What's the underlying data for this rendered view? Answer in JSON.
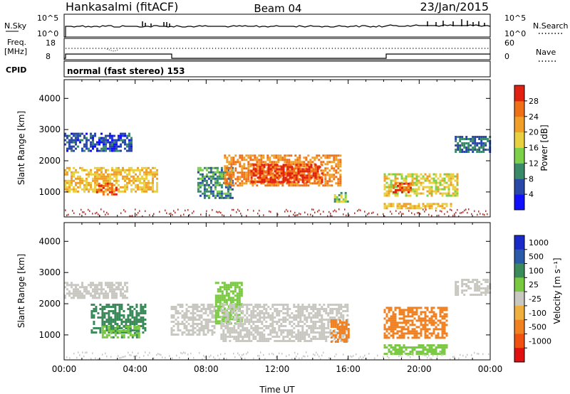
{
  "header": {
    "station": "Hankasalmi (fitACF)",
    "beam": "Beam 04",
    "date": "23/Jan/2015"
  },
  "strip": {
    "nsky_label": "N.Sky",
    "nsearch_label": "N.Search",
    "nsky_ticks": [
      "10^5",
      "10^0"
    ],
    "nsearch_ticks": [
      "10^5",
      "10^0"
    ],
    "freq_label_line1": "Freq.",
    "freq_label_line2": "[MHz]",
    "freq_ticks": [
      "18",
      "8"
    ],
    "nave_label": "Nave",
    "nave_ticks": [
      "60",
      "0"
    ],
    "cpid_label": "CPID",
    "mode_text": "normal (fast stereo) 153"
  },
  "colors": {
    "power": [
      "#1010ff",
      "#2a48a8",
      "#3a8a6a",
      "#7cd04a",
      "#e8d040",
      "#f0a028",
      "#f07018",
      "#e02010"
    ],
    "velocity": [
      "#e01010",
      "#f05010",
      "#f08020",
      "#f0b040",
      "#c8c8c0",
      "#78c840",
      "#3a8a5a",
      "#2a5aa8",
      "#1a2ac8"
    ]
  },
  "chart_data": [
    {
      "type": "heatmap",
      "panel": "power",
      "xlabel": "",
      "ylabel": "Slant Range [km]",
      "y_ticks": [
        1000,
        2000,
        3000,
        4000
      ],
      "ylim": [
        200,
        4600
      ],
      "xlim_hours": [
        0,
        24
      ],
      "colorbar": {
        "label": "Power [dB]",
        "ticks": [
          4,
          8,
          12,
          16,
          20,
          24,
          28
        ],
        "range": [
          0,
          32
        ]
      },
      "regions": [
        {
          "t": [
            0.0,
            3.8
          ],
          "r": [
            2300,
            2900
          ],
          "v": 6
        },
        {
          "t": [
            0.0,
            5.2
          ],
          "r": [
            1000,
            1800
          ],
          "v": 20
        },
        {
          "t": [
            1.8,
            3.0
          ],
          "r": [
            900,
            1300
          ],
          "v": 28
        },
        {
          "t": [
            7.5,
            9.5
          ],
          "r": [
            800,
            1800
          ],
          "v": 10
        },
        {
          "t": [
            9.0,
            15.6
          ],
          "r": [
            1200,
            2200
          ],
          "v": 24
        },
        {
          "t": [
            10.5,
            14.5
          ],
          "r": [
            1300,
            1900
          ],
          "v": 30
        },
        {
          "t": [
            15.2,
            16.0
          ],
          "r": [
            700,
            1000
          ],
          "v": 14
        },
        {
          "t": [
            18.0,
            22.2
          ],
          "r": [
            900,
            1600
          ],
          "v": 18
        },
        {
          "t": [
            18.5,
            19.5
          ],
          "r": [
            1000,
            1300
          ],
          "v": 28
        },
        {
          "t": [
            18.0,
            21.8
          ],
          "r": [
            450,
            650
          ],
          "v": 20
        },
        {
          "t": [
            22.0,
            24.0
          ],
          "r": [
            2300,
            2800
          ],
          "v": 8
        }
      ]
    },
    {
      "type": "heatmap",
      "panel": "velocity",
      "xlabel": "Time UT",
      "ylabel": "Slant Range [km]",
      "x_ticks": [
        "00:00",
        "04:00",
        "08:00",
        "12:00",
        "16:00",
        "20:00",
        "00:00"
      ],
      "y_ticks": [
        1000,
        2000,
        3000,
        4000
      ],
      "ylim": [
        200,
        4600
      ],
      "xlim_hours": [
        0,
        24
      ],
      "colorbar": {
        "label": "Velocity [m s⁻¹]",
        "ticks": [
          1000,
          500,
          100,
          25,
          -25,
          -100,
          -500,
          -1000
        ]
      },
      "regions": [
        {
          "t": [
            0.0,
            3.5
          ],
          "r": [
            2200,
            2700
          ],
          "v": 0
        },
        {
          "t": [
            1.5,
            4.6
          ],
          "r": [
            1100,
            2000
          ],
          "v": 200
        },
        {
          "t": [
            2.0,
            4.2
          ],
          "r": [
            900,
            1300
          ],
          "v": 90
        },
        {
          "t": [
            6.0,
            8.5
          ],
          "r": [
            1000,
            2000
          ],
          "v": 0
        },
        {
          "t": [
            8.5,
            10.0
          ],
          "r": [
            1400,
            2700
          ],
          "v": 60
        },
        {
          "t": [
            8.8,
            16.0
          ],
          "r": [
            800,
            2000
          ],
          "v": 0
        },
        {
          "t": [
            15.0,
            16.0
          ],
          "r": [
            800,
            1500
          ],
          "v": -300
        },
        {
          "t": [
            18.0,
            21.5
          ],
          "r": [
            900,
            1900
          ],
          "v": -300
        },
        {
          "t": [
            18.0,
            21.5
          ],
          "r": [
            400,
            700
          ],
          "v": 80
        },
        {
          "t": [
            22.0,
            24.0
          ],
          "r": [
            2300,
            2800
          ],
          "v": 0
        }
      ]
    }
  ]
}
